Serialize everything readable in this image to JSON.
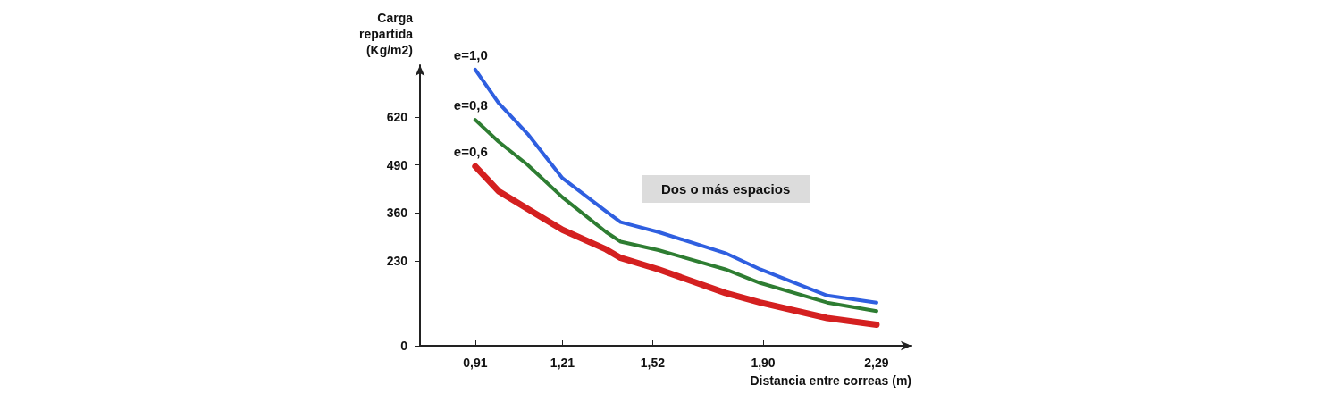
{
  "chart_data": {
    "type": "line",
    "xlabel": "Distancia entre correas (m)",
    "ylabel": "Carga repartida (Kg/m2)",
    "xlim": [
      0.72,
      2.41
    ],
    "xticks": [
      {
        "value": 0.91,
        "label": "0,91"
      },
      {
        "value": 1.21,
        "label": "1,21"
      },
      {
        "value": 1.52,
        "label": "1,52"
      },
      {
        "value": 1.9,
        "label": "1,90"
      },
      {
        "value": 2.29,
        "label": "2,29"
      }
    ],
    "ylim": [
      0,
      760
    ],
    "yticks": [
      0,
      230,
      360,
      490,
      620
    ],
    "x": [
      0.91,
      0.99,
      1.09,
      1.21,
      1.36,
      1.41,
      1.54,
      1.77,
      1.89,
      2.12,
      2.29
    ],
    "series": [
      {
        "name": "e=1,0",
        "color": "#2f5fe0",
        "values": [
          748,
          658,
          574,
          454,
          364,
          335,
          308,
          251,
          207,
          136,
          117
        ]
      },
      {
        "name": "e=0,8",
        "color": "#2e7d32",
        "values": [
          612,
          553,
          490,
          402,
          308,
          282,
          259,
          207,
          170,
          117,
          94
        ]
      },
      {
        "name": "e=0,6",
        "color": "#d42020",
        "values": [
          486,
          419,
          371,
          314,
          261,
          238,
          207,
          143,
          117,
          75,
          57
        ]
      }
    ],
    "annotations": [
      "Dos o más espacios"
    ],
    "grid": false,
    "legend": false,
    "marker": "none",
    "line_style": "solid"
  }
}
